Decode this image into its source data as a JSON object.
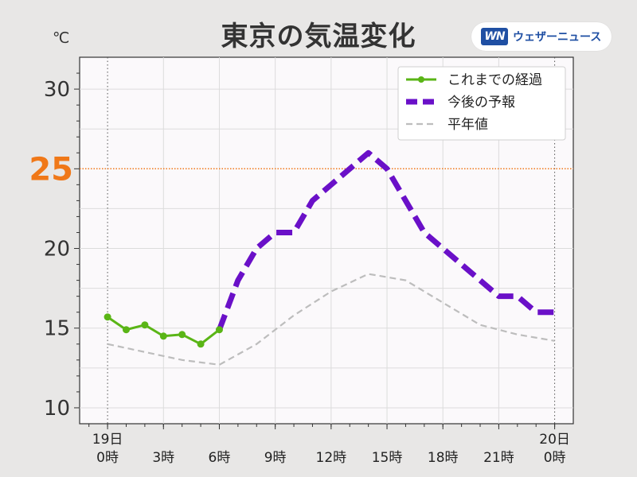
{
  "title": "東京の気温変化",
  "brand": {
    "mark": "WN",
    "name": "ウェザーニュース"
  },
  "unit": "℃",
  "highlight": {
    "value": 25,
    "label": "25",
    "color": "#f07818"
  },
  "colors": {
    "observed": "#5ab516",
    "forecast": "#6a10c8",
    "normal": "#bdbdbd"
  },
  "chart_data": {
    "type": "line",
    "title": "東京の気温変化",
    "ylabel": "℃",
    "ylim": [
      9,
      32
    ],
    "xlim": [
      -1.5,
      25
    ],
    "yticks": [
      10,
      15,
      20,
      25,
      30
    ],
    "ytick_labels": [
      "10",
      "15",
      "20",
      "",
      "30"
    ],
    "xticks": [
      {
        "x": 0,
        "label_top": "19日",
        "label_bottom": "0時"
      },
      {
        "x": 3,
        "label_top": "",
        "label_bottom": "3時"
      },
      {
        "x": 6,
        "label_top": "",
        "label_bottom": "6時"
      },
      {
        "x": 9,
        "label_top": "",
        "label_bottom": "9時"
      },
      {
        "x": 12,
        "label_top": "",
        "label_bottom": "12時"
      },
      {
        "x": 15,
        "label_top": "",
        "label_bottom": "15時"
      },
      {
        "x": 18,
        "label_top": "",
        "label_bottom": "18時"
      },
      {
        "x": 21,
        "label_top": "",
        "label_bottom": "21時"
      },
      {
        "x": 24,
        "label_top": "20日",
        "label_bottom": "0時"
      }
    ],
    "legend_position": "top-right",
    "series": [
      {
        "name": "これまでの経過",
        "style": "solid-markers",
        "x": [
          0,
          1,
          2,
          3,
          4,
          5,
          6
        ],
        "y": [
          15.7,
          14.9,
          15.2,
          14.5,
          14.6,
          14.0,
          14.9
        ]
      },
      {
        "name": "今後の予報",
        "style": "dashed-thick",
        "x": [
          6,
          7,
          8,
          9,
          10,
          11,
          12,
          13,
          14,
          15,
          16,
          17,
          18,
          19,
          20,
          21,
          22,
          23,
          24
        ],
        "y": [
          14.9,
          18,
          20,
          21,
          21,
          23,
          24,
          25,
          26,
          25,
          23,
          21,
          20,
          19,
          18,
          17,
          17,
          16,
          16
        ]
      },
      {
        "name": "平年値",
        "style": "dashed-thin",
        "x": [
          0,
          2,
          4,
          6,
          8,
          10,
          12,
          14,
          16,
          18,
          20,
          22,
          24
        ],
        "y": [
          14.0,
          13.5,
          13.0,
          12.7,
          14.0,
          15.8,
          17.3,
          18.4,
          18.0,
          16.6,
          15.2,
          14.6,
          14.2
        ]
      }
    ]
  }
}
